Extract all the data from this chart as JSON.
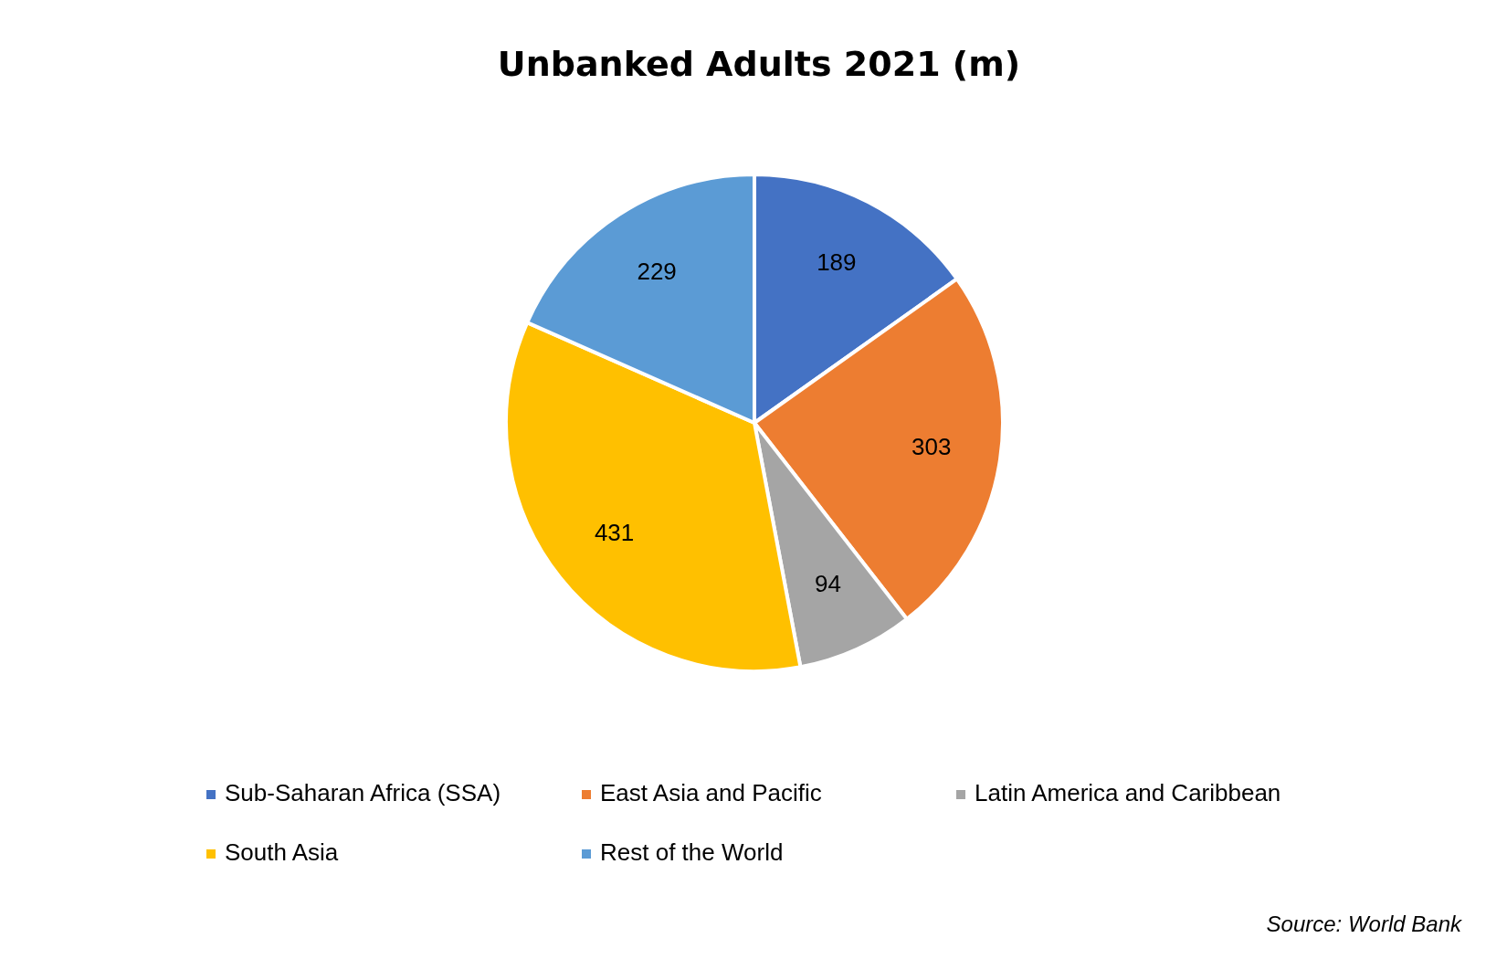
{
  "chart_data": {
    "type": "pie",
    "title": "Unbanked Adults 2021 (m)",
    "categories": [
      "Sub-Saharan Africa (SSA)",
      "East Asia and Pacific",
      "Latin America and Caribbean",
      "South Asia",
      "Rest of the World"
    ],
    "values": [
      189,
      303,
      94,
      431,
      229
    ],
    "colors": [
      "#4472c4",
      "#ed7d31",
      "#a5a5a5",
      "#ffc000",
      "#5b9bd5"
    ],
    "data_labels": true,
    "legend": "bottom",
    "annotations": [
      "Source: World Bank"
    ]
  }
}
